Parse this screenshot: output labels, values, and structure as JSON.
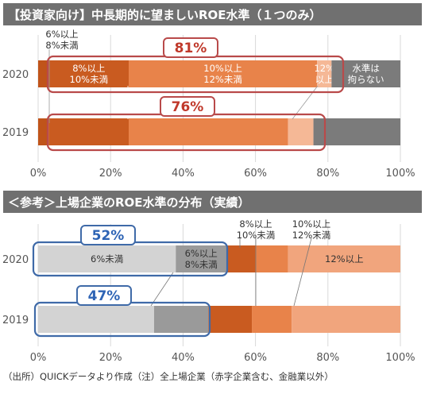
{
  "chart_data": [
    {
      "type": "bar",
      "title": "【投資家向け】中長期的に望ましいROE水準（１つのみ）",
      "categories": [
        "2020",
        "2019"
      ],
      "xlim": [
        0,
        100
      ],
      "x_ticks": [
        "0%",
        "20%",
        "40%",
        "60%",
        "80%",
        "100%"
      ],
      "series": [
        {
          "name": "6%以上\n8%未満",
          "color": "#c0541a",
          "values": [
            3,
            3
          ]
        },
        {
          "name": "8%以上\n10%未満",
          "color": "#c95b20",
          "values": [
            22,
            22
          ]
        },
        {
          "name": "10%以上\n12%未満",
          "color": "#e8834a",
          "values": [
            52,
            44
          ]
        },
        {
          "name": "12%\n以上",
          "color": "#f5b896",
          "values": [
            4,
            7
          ]
        },
        {
          "name": "水準は\n拘らない",
          "color": "#7b7b7b",
          "values": [
            19,
            24
          ]
        }
      ],
      "annotations": [
        {
          "category": "2020",
          "text": "81%"
        },
        {
          "category": "2019",
          "text": "76%"
        }
      ]
    },
    {
      "type": "bar",
      "title": "＜参考＞上場企業のROE水準の分布（実績）",
      "categories": [
        "2020",
        "2019"
      ],
      "xlim": [
        0,
        100
      ],
      "x_ticks": [
        "0%",
        "20%",
        "40%",
        "60%",
        "80%",
        "100%"
      ],
      "series": [
        {
          "name": "6%未満",
          "color": "#d3d3d3",
          "values": [
            38,
            32
          ]
        },
        {
          "name": "6%以上\n8%未満",
          "color": "#9a9a9a",
          "values": [
            14,
            15
          ]
        },
        {
          "name": "8%以上\n10%未満",
          "color": "#c95b20",
          "values": [
            8,
            12
          ]
        },
        {
          "name": "10%以上\n12%未満",
          "color": "#e8834a",
          "values": [
            9,
            11
          ]
        },
        {
          "name": "12%以上",
          "color": "#f1a57d",
          "values": [
            31,
            30
          ]
        }
      ],
      "annotations": [
        {
          "category": "2020",
          "text": "52%"
        },
        {
          "category": "2019",
          "text": "47%"
        }
      ]
    }
  ],
  "footnote": "（出所）QUICKデータより作成（注）全上場企業（赤字企業含む、金融業以外）"
}
